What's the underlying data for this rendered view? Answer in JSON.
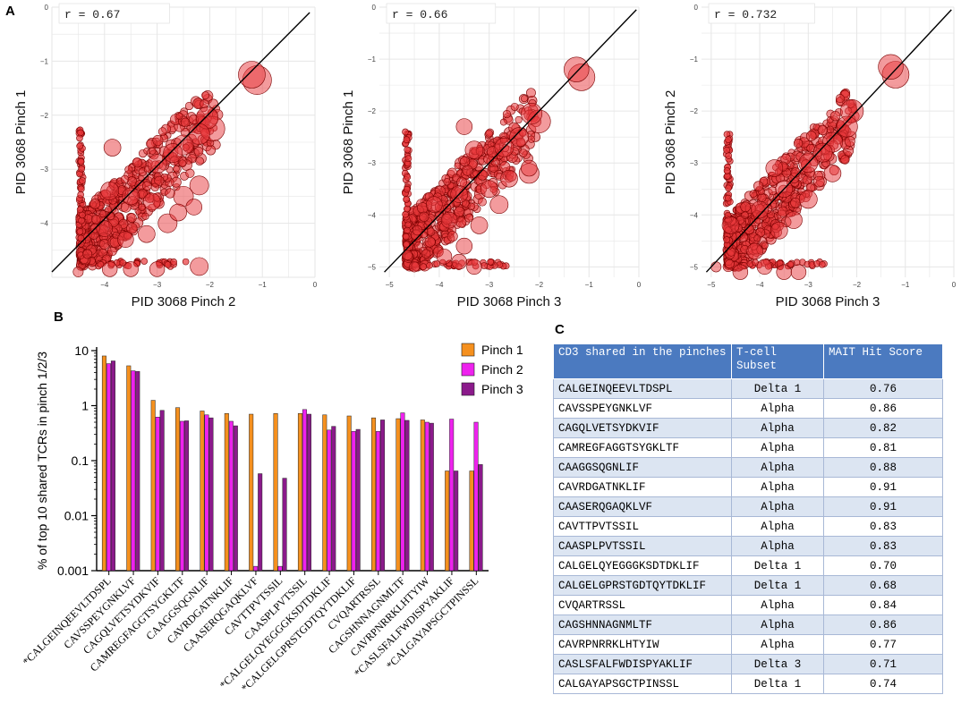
{
  "panel_labels": {
    "a": "A",
    "b": "B",
    "c": "C"
  },
  "colors": {
    "point_fill": "#e8383b",
    "point_stroke": "#7a0000",
    "pinch1": "#f5901e",
    "pinch2": "#ee22ee",
    "pinch3": "#8b1a8b",
    "table_header": "#4b7ac0"
  },
  "chart_data": [
    {
      "type": "scatter",
      "id": "a1",
      "correlation_label": "r = 0.67",
      "xlabel": "PID 3068 Pinch 2",
      "ylabel": "PID 3068 Pinch 1",
      "xlim": [
        -5,
        0
      ],
      "ylim": [
        -5,
        0
      ],
      "xticks": [
        -4,
        -3,
        -2,
        -1,
        0
      ],
      "yticks": [
        -4,
        -3,
        -2,
        -1,
        0
      ],
      "xtick_labels": [
        "−4",
        "−3",
        "−2",
        "−1",
        "0"
      ],
      "ytick_labels": [
        "−4",
        "−3",
        "−2",
        "−1",
        "0"
      ],
      "fit_line": [
        [
          -5,
          -4.9
        ],
        [
          -0.1,
          -0.1
        ]
      ],
      "points": [
        [
          -1.1,
          -1.35,
          2.2
        ],
        [
          -1.2,
          -1.25,
          2.0
        ],
        [
          -1.95,
          -2.25,
          1.8
        ],
        [
          -2.05,
          -2.05,
          1.5
        ],
        [
          -2.2,
          -2.35,
          1.4
        ],
        [
          -2.5,
          -2.55,
          1.3
        ],
        [
          -2.7,
          -2.7,
          1.2
        ],
        [
          -3.0,
          -2.9,
          1.2
        ],
        [
          -3.5,
          -3.5,
          1.0
        ],
        [
          -3.85,
          -2.6,
          1.0
        ],
        [
          -2.2,
          -3.3,
          1.2
        ],
        [
          -2.5,
          -3.5,
          1.3
        ],
        [
          -2.2,
          -4.8,
          1.1
        ],
        [
          -3.2,
          -4.2,
          1.0
        ],
        [
          -2.8,
          -4.0,
          1.2
        ],
        [
          -2.6,
          -3.8,
          1.0
        ],
        [
          -3.1,
          -3.6,
          1.0
        ],
        [
          -3.6,
          -4.3,
          0.9
        ],
        [
          -4.0,
          -4.1,
          0.9
        ],
        [
          -3.9,
          -3.4,
          1.1
        ],
        [
          -4.5,
          -4.9,
          0.3
        ],
        [
          -3.5,
          -4.85,
          0.8
        ],
        [
          -3.9,
          -4.85,
          0.8
        ],
        [
          -3.0,
          -4.85,
          0.8
        ],
        [
          -2.3,
          -3.7,
          0.9
        ]
      ]
    },
    {
      "type": "scatter",
      "id": "a2",
      "correlation_label": "r = 0.66",
      "xlabel": "PID 3068 Pinch 3",
      "ylabel": "PID 3068 Pinch 1",
      "xlim": [
        -5.2,
        0
      ],
      "ylim": [
        -5.2,
        0
      ],
      "xticks": [
        -5,
        -4,
        -3,
        -2,
        -1,
        0
      ],
      "yticks": [
        -5,
        -4,
        -3,
        -2,
        -1,
        0
      ],
      "xtick_labels": [
        "−5",
        "−4",
        "−3",
        "−2",
        "−1",
        "0"
      ],
      "ytick_labels": [
        "−5",
        "−4",
        "−3",
        "−2",
        "−1",
        "0"
      ],
      "fit_line": [
        [
          -5.1,
          -5.1
        ],
        [
          -0.05,
          -0.05
        ]
      ],
      "points": [
        [
          -1.15,
          -1.35,
          2.0
        ],
        [
          -1.25,
          -1.2,
          1.8
        ],
        [
          -2.0,
          -2.2,
          1.6
        ],
        [
          -2.15,
          -2.05,
          1.4
        ],
        [
          -2.2,
          -3.2,
          1.3
        ],
        [
          -2.4,
          -2.5,
          1.2
        ],
        [
          -2.7,
          -2.7,
          1.2
        ],
        [
          -3.3,
          -2.75,
          1.1
        ],
        [
          -3.5,
          -2.3,
          0.9
        ],
        [
          -3.6,
          -3.6,
          1.0
        ],
        [
          -3.2,
          -4.2,
          1.0
        ],
        [
          -2.8,
          -3.8,
          1.1
        ],
        [
          -2.6,
          -3.3,
          1.0
        ],
        [
          -3.0,
          -3.5,
          1.0
        ],
        [
          -3.8,
          -4.1,
          0.9
        ],
        [
          -3.5,
          -4.6,
          0.9
        ],
        [
          -3.3,
          -5.0,
          0.8
        ],
        [
          -4.5,
          -5.0,
          0.3
        ],
        [
          -3.9,
          -4.8,
          0.8
        ],
        [
          -3.6,
          -4.9,
          0.8
        ],
        [
          -4.1,
          -3.8,
          0.9
        ],
        [
          -2.2,
          -3.1,
          0.9
        ]
      ]
    },
    {
      "type": "scatter",
      "id": "a3",
      "correlation_label": "r = 0.732",
      "xlabel": "PID 3068 Pinch 3",
      "ylabel": "PID 3068 Pinch 2",
      "xlim": [
        -5.2,
        0
      ],
      "ylim": [
        -5.2,
        0
      ],
      "xticks": [
        -5,
        -4,
        -3,
        -2,
        -1,
        0
      ],
      "yticks": [
        -5,
        -4,
        -3,
        -2,
        -1,
        0
      ],
      "xtick_labels": [
        "−5",
        "−4",
        "−3",
        "−2",
        "−1",
        "0"
      ],
      "ytick_labels": [
        "−5",
        "−4",
        "−3",
        "−2",
        "−1",
        "0"
      ],
      "fit_line": [
        [
          -5.1,
          -5.1
        ],
        [
          -0.05,
          -0.05
        ]
      ],
      "points": [
        [
          -1.2,
          -1.3,
          2.0
        ],
        [
          -1.3,
          -1.15,
          1.8
        ],
        [
          -2.1,
          -2.0,
          1.6
        ],
        [
          -2.2,
          -2.3,
          1.4
        ],
        [
          -2.5,
          -2.6,
          1.3
        ],
        [
          -2.7,
          -2.8,
          1.2
        ],
        [
          -3.0,
          -3.0,
          1.2
        ],
        [
          -3.5,
          -3.5,
          1.0
        ],
        [
          -3.7,
          -3.1,
          1.0
        ],
        [
          -3.3,
          -4.1,
          1.0
        ],
        [
          -3.6,
          -4.3,
          1.0
        ],
        [
          -3.0,
          -3.7,
          1.1
        ],
        [
          -4.1,
          -4.7,
          0.9
        ],
        [
          -4.6,
          -4.2,
          1.0
        ],
        [
          -4.9,
          -5.0,
          0.3
        ],
        [
          -4.4,
          -5.1,
          0.8
        ],
        [
          -3.9,
          -5.0,
          0.8
        ],
        [
          -3.5,
          -5.1,
          0.8
        ],
        [
          -3.2,
          -5.1,
          0.8
        ],
        [
          -2.5,
          -3.2,
          1.0
        ],
        [
          -4.0,
          -3.9,
          1.0
        ]
      ]
    },
    {
      "type": "bar",
      "id": "b",
      "ylabel": "% of top 10 shared TCRs in pinch 1/2/3",
      "yscale": "log",
      "ylim": [
        0.001,
        10
      ],
      "yticks": [
        0.001,
        0.01,
        0.1,
        1,
        10
      ],
      "ytick_labels": [
        "0.001",
        "0.01",
        "0.1",
        "1",
        "10"
      ],
      "categories": [
        "*CALGEINQEEVLTDSPL",
        "CAVSSPEYGNKLVF",
        "CAGQLVETSYDKVIF",
        "CAMREGFAGGTSYGKLTF",
        "CAAGGSQGNLIF",
        "CAVRDGATNKLIF",
        "CAASERQGAQKLVF",
        "CAVTTPVTSSIL",
        "CAASPLPVTSSIL",
        "*CALGELQYEGGGKSDTDKLIF",
        "*CALGELGPRSTGDTQYTDKLIF",
        "CVQARTRSSL",
        "CAGSHNNAGNMLTF",
        "CAVRPNRRKLHTYIW",
        "*CASLSFALFWDISPYAKLIF",
        "*CALGAYAPSGCTPINSSL"
      ],
      "series": [
        {
          "name": "Pinch 1",
          "values": [
            8.0,
            5.3,
            1.25,
            0.92,
            0.8,
            0.72,
            0.7,
            0.72,
            0.72,
            0.68,
            0.65,
            0.6,
            0.58,
            0.55,
            0.065,
            0.065
          ]
        },
        {
          "name": "Pinch 2",
          "values": [
            5.8,
            4.3,
            0.62,
            0.52,
            0.68,
            0.52,
            0.0012,
            0.0012,
            0.85,
            0.36,
            0.34,
            0.34,
            0.74,
            0.5,
            0.57,
            0.5
          ]
        },
        {
          "name": "Pinch 3",
          "values": [
            6.5,
            4.2,
            0.82,
            0.53,
            0.6,
            0.43,
            0.058,
            0.048,
            0.7,
            0.42,
            0.37,
            0.55,
            0.54,
            0.48,
            0.065,
            0.085
          ]
        }
      ],
      "legend": [
        "Pinch 1",
        "Pinch 2",
        "Pinch 3"
      ],
      "legend_position": "top-right"
    }
  ],
  "table_c": {
    "headers": [
      "CD3 shared in the pinches",
      "T-cell Subset",
      "MAIT Hit Score"
    ],
    "rows": [
      [
        "CALGEINQEEVLTDSPL",
        "Delta 1",
        "0.76"
      ],
      [
        "CAVSSPEYGNKLVF",
        "Alpha",
        "0.86"
      ],
      [
        "CAGQLVETSYDKVIF",
        "Alpha",
        "0.82"
      ],
      [
        "CAMREGFAGGTSYGKLTF",
        "Alpha",
        "0.81"
      ],
      [
        "CAAGGSQGNLIF",
        "Alpha",
        "0.88"
      ],
      [
        "CAVRDGATNKLIF",
        "Alpha",
        "0.91"
      ],
      [
        "CAASERQGAQKLVF",
        "Alpha",
        "0.91"
      ],
      [
        "CAVTTPVTSSIL",
        "Alpha",
        "0.83"
      ],
      [
        "CAASPLPVTSSIL",
        "Alpha",
        "0.83"
      ],
      [
        "CALGELQYEGGGKSDTDKLIF",
        "Delta 1",
        "0.70"
      ],
      [
        "CALGELGPRSTGDTQYTDKLIF",
        "Delta 1",
        "0.68"
      ],
      [
        "CVQARTRSSL",
        "Alpha",
        "0.84"
      ],
      [
        "CAGSHNNAGNMLTF",
        "Alpha",
        "0.86"
      ],
      [
        "CAVRPNRRKLHTYIW",
        "Alpha",
        "0.77"
      ],
      [
        "CASLSFALFWDISPYAKLIF",
        "Delta 3",
        "0.71"
      ],
      [
        "CALGAYAPSGCTPINSSL",
        "Delta 1",
        "0.74"
      ]
    ]
  }
}
